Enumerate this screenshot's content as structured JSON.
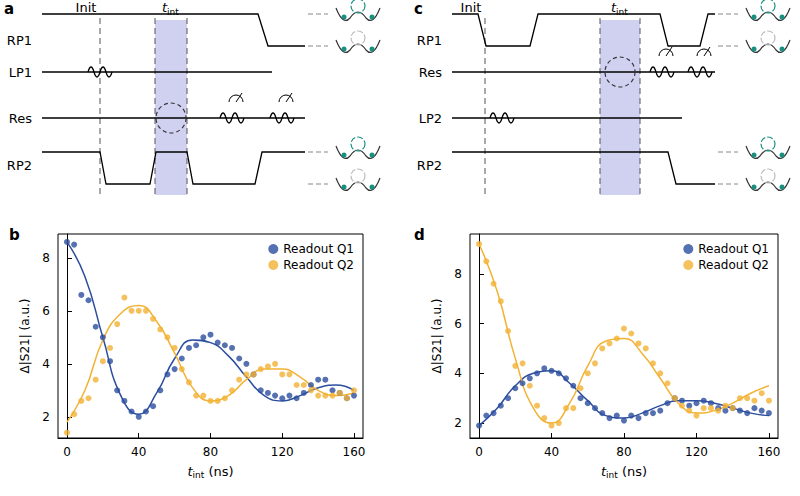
{
  "diagrams": [
    {
      "label": "a",
      "init": "Init",
      "interaction": {
        "text": "t",
        "sub": "int"
      },
      "rows": [
        "RP1",
        "LP1",
        "Res",
        "RP2"
      ]
    },
    {
      "label": "c",
      "init": "Init",
      "interaction": {
        "text": "t",
        "sub": "int"
      },
      "rows": [
        "RP1",
        "Res",
        "LP2",
        "RP2"
      ]
    }
  ],
  "chart_data": [
    {
      "type": "scatter",
      "title": "b",
      "x_label": {
        "text": "t",
        "sub": "int",
        "suffix": " (ns)"
      },
      "y_label": "Δ|S21| (a.u.)",
      "x": [
        0,
        4,
        8,
        12,
        16,
        20,
        24,
        28,
        32,
        36,
        40,
        44,
        48,
        52,
        56,
        60,
        64,
        68,
        72,
        76,
        80,
        84,
        88,
        92,
        96,
        100,
        104,
        108,
        112,
        116,
        120,
        124,
        128,
        132,
        136,
        140,
        144,
        148,
        152,
        156,
        160
      ],
      "fit_x": [
        0,
        10,
        20,
        30,
        40,
        50,
        60,
        70,
        80,
        90,
        100,
        110,
        120,
        130,
        140,
        150,
        160
      ],
      "series": [
        {
          "name": "Readout Q1",
          "color": "#2c4e9e",
          "marker": "circle",
          "line_style": "solid",
          "values": [
            8.6,
            8.5,
            6.6,
            6.4,
            5.4,
            5.0,
            4.1,
            3.0,
            2.6,
            2.2,
            2.0,
            2.2,
            2.4,
            3.0,
            3.6,
            3.8,
            4.2,
            4.6,
            4.7,
            5.0,
            5.1,
            4.8,
            4.7,
            4.6,
            4.2,
            4.0,
            3.6,
            3.0,
            2.9,
            2.8,
            2.7,
            2.8,
            2.7,
            2.9,
            3.2,
            3.4,
            3.4,
            3.0,
            2.9,
            2.7,
            2.8
          ],
          "fit": [
            8.6,
            7.3,
            5.0,
            2.8,
            2.1,
            2.9,
            4.2,
            4.9,
            4.8,
            4.3,
            3.5,
            2.8,
            2.6,
            2.8,
            3.1,
            3.2,
            3.0
          ]
        },
        {
          "name": "Readout Q2",
          "color": "#f2b233",
          "marker": "circle",
          "line_style": "solid",
          "values": [
            1.4,
            2.1,
            2.6,
            2.7,
            3.4,
            4.1,
            4.6,
            5.5,
            6.5,
            6.0,
            6.0,
            6.0,
            5.7,
            5.3,
            5.0,
            4.6,
            3.8,
            3.3,
            2.8,
            2.8,
            2.6,
            2.6,
            2.7,
            3.0,
            3.4,
            3.6,
            3.6,
            3.8,
            3.9,
            4.0,
            3.6,
            3.6,
            3.2,
            3.2,
            3.0,
            2.8,
            2.8,
            2.8,
            2.9,
            2.7,
            3.0
          ],
          "fit": [
            1.8,
            3.0,
            4.9,
            5.9,
            6.2,
            5.6,
            4.4,
            3.1,
            2.6,
            2.8,
            3.4,
            3.8,
            3.8,
            3.5,
            3.0,
            2.8,
            2.9
          ]
        }
      ],
      "xlim": [
        -5,
        165
      ],
      "xticks": [
        0,
        40,
        80,
        120,
        160
      ],
      "ylim": [
        1.2,
        8.9
      ],
      "yticks": [
        2,
        4,
        6,
        8
      ],
      "grid": false,
      "legend": "upper right"
    },
    {
      "type": "scatter",
      "title": "d",
      "x_label": {
        "text": "t",
        "sub": "int",
        "suffix": " (ns)"
      },
      "y_label": "Δ|S21| (a.u.)",
      "x": [
        0,
        4,
        8,
        12,
        16,
        20,
        24,
        28,
        32,
        36,
        40,
        44,
        48,
        52,
        56,
        60,
        64,
        68,
        72,
        76,
        80,
        84,
        88,
        92,
        96,
        100,
        104,
        108,
        112,
        116,
        120,
        124,
        128,
        132,
        136,
        140,
        144,
        148,
        152,
        156,
        160
      ],
      "fit_x": [
        0,
        10,
        20,
        30,
        40,
        50,
        60,
        70,
        80,
        90,
        100,
        110,
        120,
        130,
        140,
        150,
        160
      ],
      "series": [
        {
          "name": "Readout Q1",
          "color": "#2c4e9e",
          "marker": "circle",
          "line_style": "solid",
          "values": [
            1.9,
            2.3,
            2.4,
            2.7,
            3.0,
            3.4,
            3.6,
            3.8,
            4.0,
            4.2,
            4.1,
            4.0,
            3.8,
            3.5,
            3.0,
            2.8,
            2.6,
            2.4,
            2.2,
            2.3,
            2.1,
            2.3,
            2.2,
            2.4,
            2.4,
            2.5,
            2.8,
            3.0,
            2.9,
            2.7,
            2.8,
            2.9,
            2.8,
            2.6,
            2.5,
            2.6,
            2.5,
            2.4,
            2.6,
            2.5,
            2.4
          ],
          "fit": [
            1.9,
            2.6,
            3.5,
            4.0,
            4.1,
            3.6,
            2.9,
            2.3,
            2.2,
            2.4,
            2.7,
            2.9,
            2.9,
            2.8,
            2.6,
            2.4,
            2.3
          ]
        },
        {
          "name": "Readout Q2",
          "color": "#f2b233",
          "marker": "circle",
          "line_style": "solid",
          "values": [
            9.2,
            8.5,
            7.6,
            6.9,
            5.7,
            4.3,
            4.4,
            3.5,
            2.7,
            2.2,
            1.9,
            2.0,
            2.6,
            2.6,
            3.4,
            4.0,
            4.4,
            5.0,
            5.2,
            5.4,
            5.8,
            5.6,
            5.2,
            5.0,
            4.4,
            4.0,
            3.6,
            3.0,
            2.7,
            2.5,
            2.3,
            2.6,
            2.6,
            2.5,
            2.7,
            2.6,
            3.0,
            3.0,
            2.9,
            3.2,
            2.9
          ],
          "fit": [
            9.2,
            7.3,
            4.6,
            2.6,
            2.0,
            2.8,
            4.3,
            5.3,
            5.4,
            4.8,
            3.8,
            2.8,
            2.4,
            2.5,
            2.8,
            3.2,
            3.5
          ]
        }
      ],
      "xlim": [
        -5,
        165
      ],
      "xticks": [
        0,
        40,
        80,
        120,
        160
      ],
      "ylim": [
        1.4,
        9.6
      ],
      "yticks": [
        2,
        4,
        6,
        8
      ],
      "grid": false,
      "legend": "upper right"
    }
  ]
}
